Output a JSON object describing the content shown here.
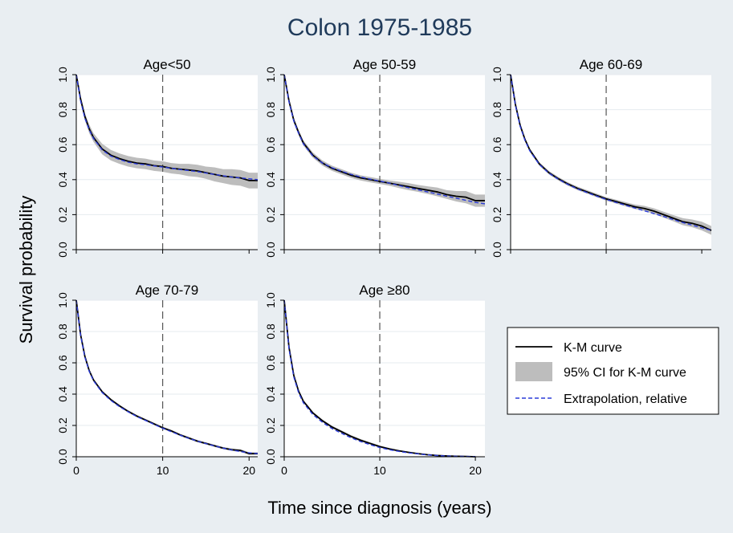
{
  "colors": {
    "background": "#e9eef2",
    "panel": "#ffffff",
    "grid": "#e6ebef",
    "km": "#000000",
    "ci": "#bdbdbd",
    "extrapolation": "#2b3bd9",
    "refline": "#555555",
    "title": "#1f3a5a"
  },
  "chart_data": {
    "type": "line",
    "title": "Colon 1975-1985",
    "xlabel": "Time since diagnosis (years)",
    "ylabel": "Survival probability",
    "ylim": [
      0,
      1
    ],
    "yticks": [
      "0.0",
      "0.2",
      "0.4",
      "0.6",
      "0.8",
      "1.0"
    ],
    "xticks": [
      "0",
      "10",
      "20"
    ],
    "reference_line_x": 10,
    "grid": true,
    "legend_position": "right",
    "legend": [
      {
        "label": "K-M curve",
        "style": "solid"
      },
      {
        "label": "95% CI for K-M curve",
        "style": "band"
      },
      {
        "label": "Extrapolation, relative",
        "style": "dashed"
      }
    ],
    "panels": [
      {
        "title": "Age<50",
        "xlim": [
          0,
          21
        ],
        "x": [
          0,
          0.5,
          1,
          1.5,
          2,
          3,
          4,
          5,
          6,
          7,
          8,
          9,
          10,
          11,
          12,
          13,
          14,
          15,
          16,
          17,
          18,
          19,
          20,
          21
        ],
        "km": [
          1.0,
          0.86,
          0.76,
          0.69,
          0.64,
          0.575,
          0.54,
          0.52,
          0.505,
          0.495,
          0.49,
          0.48,
          0.475,
          0.465,
          0.46,
          0.455,
          0.45,
          0.44,
          0.43,
          0.42,
          0.415,
          0.41,
          0.395,
          0.395
        ],
        "ci_low": [
          1.0,
          0.84,
          0.74,
          0.665,
          0.615,
          0.545,
          0.51,
          0.49,
          0.475,
          0.465,
          0.46,
          0.45,
          0.445,
          0.435,
          0.43,
          0.42,
          0.415,
          0.405,
          0.39,
          0.38,
          0.37,
          0.365,
          0.35,
          0.35
        ],
        "ci_high": [
          1.0,
          0.88,
          0.78,
          0.715,
          0.665,
          0.605,
          0.57,
          0.55,
          0.535,
          0.525,
          0.52,
          0.51,
          0.505,
          0.495,
          0.49,
          0.49,
          0.485,
          0.475,
          0.47,
          0.46,
          0.46,
          0.455,
          0.44,
          0.44
        ],
        "extrapolation": [
          1.0,
          0.85,
          0.75,
          0.685,
          0.635,
          0.57,
          0.535,
          0.515,
          0.5,
          0.49,
          0.485,
          0.478,
          0.472,
          0.465,
          0.458,
          0.452,
          0.446,
          0.438,
          0.43,
          0.422,
          0.415,
          0.41,
          0.405,
          0.4
        ]
      },
      {
        "title": "Age 50-59",
        "xlim": [
          0,
          21
        ],
        "x": [
          0,
          0.5,
          1,
          1.5,
          2,
          3,
          4,
          5,
          6,
          7,
          8,
          9,
          10,
          11,
          12,
          13,
          14,
          15,
          16,
          17,
          18,
          19,
          20,
          21
        ],
        "km": [
          1.0,
          0.85,
          0.74,
          0.67,
          0.61,
          0.54,
          0.495,
          0.465,
          0.445,
          0.425,
          0.41,
          0.4,
          0.39,
          0.38,
          0.37,
          0.36,
          0.35,
          0.34,
          0.33,
          0.315,
          0.305,
          0.3,
          0.28,
          0.28
        ],
        "ci_low": [
          1.0,
          0.835,
          0.725,
          0.655,
          0.595,
          0.525,
          0.48,
          0.45,
          0.43,
          0.41,
          0.395,
          0.385,
          0.375,
          0.365,
          0.352,
          0.34,
          0.33,
          0.318,
          0.305,
          0.29,
          0.275,
          0.265,
          0.245,
          0.245
        ],
        "ci_high": [
          1.0,
          0.865,
          0.755,
          0.685,
          0.625,
          0.555,
          0.51,
          0.48,
          0.46,
          0.44,
          0.425,
          0.415,
          0.405,
          0.395,
          0.388,
          0.38,
          0.37,
          0.362,
          0.355,
          0.34,
          0.335,
          0.335,
          0.315,
          0.315
        ],
        "extrapolation": [
          1.0,
          0.845,
          0.735,
          0.665,
          0.605,
          0.535,
          0.495,
          0.468,
          0.448,
          0.43,
          0.415,
          0.403,
          0.392,
          0.38,
          0.367,
          0.354,
          0.342,
          0.33,
          0.318,
          0.306,
          0.294,
          0.282,
          0.27,
          0.262
        ]
      },
      {
        "title": "Age 60-69",
        "xlim": [
          0,
          21
        ],
        "x": [
          0,
          0.5,
          1,
          1.5,
          2,
          3,
          4,
          5,
          6,
          7,
          8,
          9,
          10,
          11,
          12,
          13,
          14,
          15,
          16,
          17,
          18,
          19,
          20,
          21
        ],
        "km": [
          1.0,
          0.83,
          0.71,
          0.63,
          0.57,
          0.49,
          0.44,
          0.405,
          0.375,
          0.35,
          0.33,
          0.31,
          0.29,
          0.275,
          0.26,
          0.245,
          0.235,
          0.22,
          0.2,
          0.18,
          0.16,
          0.15,
          0.135,
          0.11
        ],
        "ci_low": [
          1.0,
          0.82,
          0.7,
          0.62,
          0.56,
          0.48,
          0.43,
          0.395,
          0.365,
          0.34,
          0.32,
          0.3,
          0.28,
          0.264,
          0.248,
          0.232,
          0.22,
          0.204,
          0.183,
          0.162,
          0.14,
          0.128,
          0.11,
          0.085
        ],
        "ci_high": [
          1.0,
          0.84,
          0.72,
          0.64,
          0.58,
          0.5,
          0.45,
          0.415,
          0.385,
          0.36,
          0.34,
          0.32,
          0.3,
          0.286,
          0.272,
          0.258,
          0.25,
          0.236,
          0.217,
          0.198,
          0.18,
          0.172,
          0.16,
          0.135
        ],
        "extrapolation": [
          1.0,
          0.825,
          0.705,
          0.625,
          0.565,
          0.487,
          0.437,
          0.402,
          0.372,
          0.347,
          0.326,
          0.306,
          0.287,
          0.27,
          0.254,
          0.238,
          0.222,
          0.206,
          0.19,
          0.172,
          0.155,
          0.14,
          0.125,
          0.11
        ]
      },
      {
        "title": "Age 70-79",
        "xlim": [
          0,
          21
        ],
        "x": [
          0,
          0.5,
          1,
          1.5,
          2,
          3,
          4,
          5,
          6,
          7,
          8,
          9,
          10,
          11,
          12,
          13,
          14,
          15,
          16,
          17,
          18,
          19,
          20,
          21
        ],
        "km": [
          1.0,
          0.78,
          0.64,
          0.55,
          0.49,
          0.415,
          0.365,
          0.325,
          0.29,
          0.26,
          0.235,
          0.21,
          0.185,
          0.165,
          0.14,
          0.12,
          0.1,
          0.085,
          0.07,
          0.055,
          0.045,
          0.04,
          0.02,
          0.02
        ],
        "ci_low": [
          1.0,
          0.773,
          0.633,
          0.543,
          0.483,
          0.408,
          0.358,
          0.318,
          0.283,
          0.253,
          0.228,
          0.203,
          0.178,
          0.158,
          0.133,
          0.113,
          0.093,
          0.078,
          0.063,
          0.048,
          0.037,
          0.031,
          0.012,
          0.012
        ],
        "ci_high": [
          1.0,
          0.787,
          0.647,
          0.557,
          0.497,
          0.422,
          0.372,
          0.332,
          0.297,
          0.267,
          0.242,
          0.217,
          0.192,
          0.172,
          0.147,
          0.127,
          0.107,
          0.092,
          0.077,
          0.062,
          0.053,
          0.049,
          0.028,
          0.028
        ],
        "extrapolation": [
          1.0,
          0.775,
          0.635,
          0.545,
          0.485,
          0.41,
          0.36,
          0.32,
          0.287,
          0.257,
          0.232,
          0.207,
          0.182,
          0.16,
          0.138,
          0.118,
          0.1,
          0.084,
          0.069,
          0.055,
          0.043,
          0.033,
          0.025,
          0.02
        ]
      },
      {
        "title": "Age ≥80",
        "xlim": [
          0,
          21
        ],
        "x": [
          0,
          0.5,
          1,
          1.5,
          2,
          3,
          4,
          5,
          6,
          7,
          8,
          9,
          10,
          11,
          12,
          13,
          14,
          15,
          16,
          17,
          18,
          19,
          20
        ],
        "km": [
          1.0,
          0.7,
          0.52,
          0.42,
          0.355,
          0.28,
          0.23,
          0.19,
          0.16,
          0.13,
          0.105,
          0.085,
          0.065,
          0.05,
          0.038,
          0.028,
          0.02,
          0.013,
          0.008,
          0.005,
          0.003,
          0.002,
          0.0
        ],
        "ci_low": [
          1.0,
          0.692,
          0.512,
          0.412,
          0.347,
          0.272,
          0.222,
          0.182,
          0.152,
          0.122,
          0.097,
          0.078,
          0.058,
          0.044,
          0.033,
          0.023,
          0.016,
          0.01,
          0.005,
          0.002,
          0.001,
          0.0,
          0.0
        ],
        "ci_high": [
          1.0,
          0.708,
          0.528,
          0.428,
          0.363,
          0.288,
          0.238,
          0.198,
          0.168,
          0.138,
          0.113,
          0.092,
          0.072,
          0.056,
          0.043,
          0.033,
          0.024,
          0.016,
          0.011,
          0.008,
          0.005,
          0.004,
          0.002
        ],
        "extrapolation": [
          1.0,
          0.69,
          0.51,
          0.41,
          0.345,
          0.27,
          0.22,
          0.18,
          0.15,
          0.121,
          0.097,
          0.077,
          0.059,
          0.045,
          0.034,
          0.025,
          0.018,
          0.012,
          0.008,
          0.005,
          0.003,
          0.002,
          0.001
        ]
      }
    ]
  }
}
